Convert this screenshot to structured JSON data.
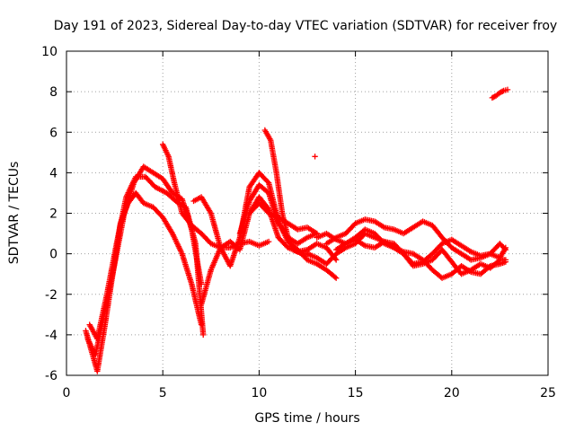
{
  "chart_data": {
    "type": "scatter",
    "title": "Day 191 of 2023, Sidereal Day-to-day VTEC variation (SDTVAR) for receiver froy",
    "xlabel": "GPS time / hours",
    "ylabel": "SDTVAR / TECUs",
    "xlim": [
      0,
      25
    ],
    "ylim": [
      -6,
      10
    ],
    "x_ticks": [
      "0",
      "5",
      "10",
      "15",
      "20",
      "25"
    ],
    "y_ticks": [
      "-6",
      "-4",
      "-2",
      "0",
      "2",
      "4",
      "6",
      "8",
      "10"
    ],
    "x_tick_values": [
      0,
      5,
      10,
      15,
      20,
      25
    ],
    "y_tick_values": [
      -6,
      -4,
      -2,
      0,
      2,
      4,
      6,
      8,
      10
    ],
    "grid": true,
    "marker": "plus",
    "color": "#ff0000",
    "series": [
      {
        "name": "track-1",
        "x": [
          1.0,
          1.3,
          1.6,
          2.0,
          2.4,
          2.8,
          3.2,
          3.6,
          4.0,
          4.5,
          5.0,
          5.5,
          6.0,
          6.5,
          7.0
        ],
        "y": [
          -3.8,
          -4.8,
          -5.8,
          -3.5,
          -1.0,
          1.5,
          2.5,
          3.0,
          2.5,
          2.3,
          1.8,
          1.0,
          0.0,
          -1.5,
          -3.5
        ]
      },
      {
        "name": "track-2",
        "x": [
          1.1,
          1.5,
          2.0,
          2.5,
          3.0,
          3.5,
          4.0,
          4.5,
          5.0,
          5.5,
          6.0,
          6.5,
          7.0
        ],
        "y": [
          -4.2,
          -5.0,
          -2.8,
          -0.5,
          2.0,
          3.5,
          4.3,
          4.0,
          3.7,
          3.0,
          2.7,
          1.2,
          -1.5
        ]
      },
      {
        "name": "track-3",
        "x": [
          1.2,
          1.6,
          2.1,
          2.6,
          3.1,
          3.6,
          4.1,
          4.6,
          5.2,
          5.8,
          6.2,
          6.7,
          7.1
        ],
        "y": [
          -3.5,
          -4.2,
          -2.0,
          0.5,
          2.8,
          3.8,
          3.8,
          3.3,
          3.0,
          2.5,
          2.3,
          0.5,
          -4.0
        ]
      },
      {
        "name": "track-4",
        "x": [
          5.0,
          5.3,
          5.6,
          6.0,
          6.5,
          7.0,
          7.5,
          8.0,
          8.5,
          9.0,
          9.5,
          10.0,
          10.5
        ],
        "y": [
          5.4,
          4.8,
          3.5,
          2.0,
          1.4,
          1.0,
          0.5,
          0.3,
          0.3,
          0.5,
          0.6,
          0.4,
          0.6
        ]
      },
      {
        "name": "track-5",
        "x": [
          6.6,
          7.0,
          7.5,
          8.0,
          8.5,
          9.0,
          9.5,
          10.0,
          10.5,
          11.0,
          11.5,
          12.0,
          12.5,
          13.0,
          13.5,
          14.0
        ],
        "y": [
          2.6,
          2.8,
          2.0,
          0.3,
          -0.6,
          0.8,
          3.3,
          4.0,
          3.5,
          1.6,
          0.6,
          0.2,
          -0.3,
          -0.5,
          -0.8,
          -1.2
        ]
      },
      {
        "name": "track-6",
        "x": [
          7.0,
          7.5,
          8.0,
          8.5,
          9.0,
          9.5,
          10.0,
          10.5,
          11.0,
          11.5,
          12.0,
          12.5,
          13.0,
          13.5,
          14.0
        ],
        "y": [
          -2.5,
          -0.8,
          0.3,
          0.6,
          0.2,
          2.0,
          2.8,
          2.2,
          0.8,
          0.3,
          0.1,
          0.2,
          0.5,
          0.3,
          -0.3
        ]
      },
      {
        "name": "track-7",
        "x": [
          10.3,
          10.6,
          10.9,
          11.2,
          11.5,
          11.8,
          12.2,
          12.6
        ],
        "y": [
          6.1,
          5.6,
          4.0,
          2.0,
          0.8,
          0.2,
          0.0,
          0.0
        ]
      },
      {
        "name": "track-8",
        "x": [
          9.5,
          10.0,
          10.5,
          11.0,
          11.5,
          12.0,
          12.5,
          13.0
        ],
        "y": [
          2.0,
          2.5,
          2.0,
          1.8,
          1.5,
          1.2,
          1.3,
          1.0
        ]
      },
      {
        "name": "track-9",
        "x": [
          9.0,
          9.5,
          10.0,
          10.5,
          11.0,
          11.5,
          12.0,
          12.5,
          13.0
        ],
        "y": [
          1.0,
          2.6,
          3.4,
          3.0,
          1.5,
          0.8,
          0.5,
          0.8,
          1.0
        ]
      },
      {
        "name": "track-10",
        "x": [
          13.5,
          14.0,
          14.5,
          15.0,
          15.5,
          16.0,
          16.5,
          17.0,
          17.5,
          18.0,
          18.5,
          19.0,
          19.5,
          20.0,
          20.5,
          21.0,
          21.5,
          22.0,
          22.5,
          22.8
        ],
        "y": [
          0.5,
          0.8,
          1.0,
          1.5,
          1.7,
          1.6,
          1.3,
          1.2,
          1.0,
          1.3,
          1.6,
          1.4,
          0.8,
          0.3,
          0.0,
          -0.3,
          -0.2,
          0.0,
          0.5,
          0.2
        ]
      },
      {
        "name": "track-11",
        "x": [
          12.5,
          13.0,
          13.5,
          14.0,
          14.5,
          15.0,
          15.5,
          16.0,
          16.5,
          17.0,
          17.5,
          18.0,
          18.5,
          19.0,
          19.5,
          20.0,
          20.5,
          21.0,
          21.5,
          22.0,
          22.5,
          22.8
        ],
        "y": [
          0.0,
          -0.2,
          -0.5,
          0.0,
          0.3,
          0.5,
          1.0,
          0.8,
          0.6,
          0.3,
          0.0,
          -0.5,
          -0.4,
          0.0,
          0.5,
          0.7,
          0.4,
          0.1,
          -0.1,
          0.0,
          -0.2,
          0.3
        ]
      },
      {
        "name": "track-12",
        "x": [
          13.0,
          13.5,
          14.0,
          14.5,
          15.0,
          15.5,
          16.0,
          16.5,
          17.0,
          17.5,
          18.0,
          18.5,
          19.0,
          19.5,
          20.0,
          20.5,
          21.0,
          21.5,
          22.0,
          22.5,
          22.8
        ],
        "y": [
          0.8,
          1.0,
          0.7,
          0.5,
          0.8,
          1.2,
          1.0,
          0.5,
          0.3,
          0.1,
          0.0,
          -0.3,
          -0.8,
          -1.2,
          -1.0,
          -0.6,
          -0.9,
          -1.0,
          -0.6,
          -0.5,
          -0.4
        ]
      },
      {
        "name": "track-13",
        "x": [
          14.0,
          14.5,
          15.0,
          15.5,
          16.0,
          16.5,
          17.0,
          17.5,
          18.0,
          18.5,
          19.0,
          19.5,
          20.0,
          20.5,
          21.0,
          21.5,
          22.0,
          22.5,
          22.8
        ],
        "y": [
          0.2,
          0.5,
          0.7,
          0.4,
          0.3,
          0.6,
          0.5,
          0.0,
          -0.6,
          -0.5,
          -0.3,
          0.2,
          -0.4,
          -1.0,
          -0.8,
          -0.5,
          -0.7,
          -0.3,
          -0.3
        ]
      },
      {
        "name": "outlier-1",
        "x": [
          12.9
        ],
        "y": [
          4.8
        ]
      },
      {
        "name": "track-14",
        "x": [
          22.1,
          22.3,
          22.5,
          22.7,
          22.9
        ],
        "y": [
          7.7,
          7.8,
          7.95,
          8.05,
          8.1
        ]
      }
    ]
  }
}
